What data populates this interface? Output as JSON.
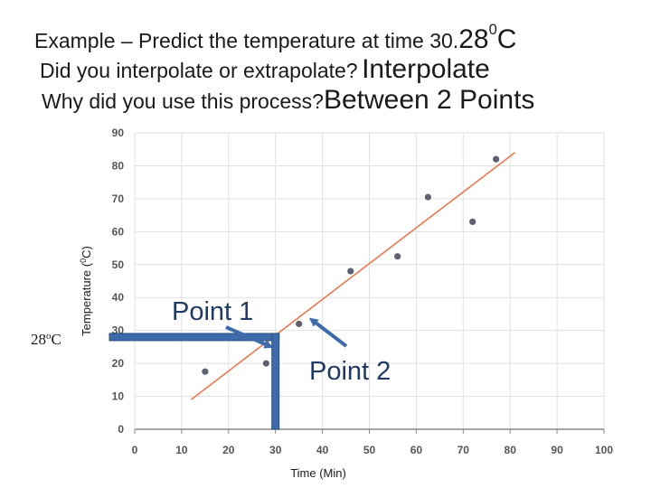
{
  "slide": {
    "line1": {
      "question": "Example – Predict the temperature at time 30.",
      "answer_base": "28",
      "answer_sup": "0",
      "answer_tail": "C"
    },
    "line2": {
      "question": "Did you interpolate or extrapolate?",
      "answer": "Interpolate"
    },
    "line3": {
      "question": "Why did you use this process?",
      "answer": "Between 2 Points"
    }
  },
  "chart_data": {
    "type": "scatter",
    "xlabel": "Time (Min)",
    "ylabel_base": "Temperature (",
    "ylabel_sup": "0",
    "ylabel_tail": "C)",
    "xlim": [
      0,
      100
    ],
    "ylim": [
      0,
      90
    ],
    "x_ticks": [
      "0",
      "10",
      "20",
      "30",
      "40",
      "50",
      "60",
      "70",
      "80",
      "90",
      "100"
    ],
    "y_ticks": [
      "0",
      "10",
      "20",
      "30",
      "40",
      "50",
      "60",
      "70",
      "80",
      "90"
    ],
    "grid": true,
    "points": [
      {
        "x": 15,
        "y": 17.5
      },
      {
        "x": 28,
        "y": 20
      },
      {
        "x": 35,
        "y": 32
      },
      {
        "x": 46,
        "y": 48
      },
      {
        "x": 56,
        "y": 52.5
      },
      {
        "x": 62.5,
        "y": 70.5
      },
      {
        "x": 72,
        "y": 63
      },
      {
        "x": 77,
        "y": 82
      }
    ],
    "trend_line": {
      "x": [
        12,
        81
      ],
      "y": [
        9,
        84
      ]
    },
    "annotations": {
      "point1_label": "Point 1",
      "point2_label": "Point 2",
      "read_value": "28",
      "read_sup": "o",
      "read_unit": "C",
      "read_x": 30,
      "read_y": 28,
      "point1_target": {
        "x": 30,
        "y": 26
      },
      "point2_target": {
        "x": 37,
        "y": 31
      }
    },
    "colors": {
      "points": "#5d6171",
      "trend": "#e8784d",
      "arrows": "#3d6aa8",
      "grid": "#e1e1e1"
    }
  }
}
